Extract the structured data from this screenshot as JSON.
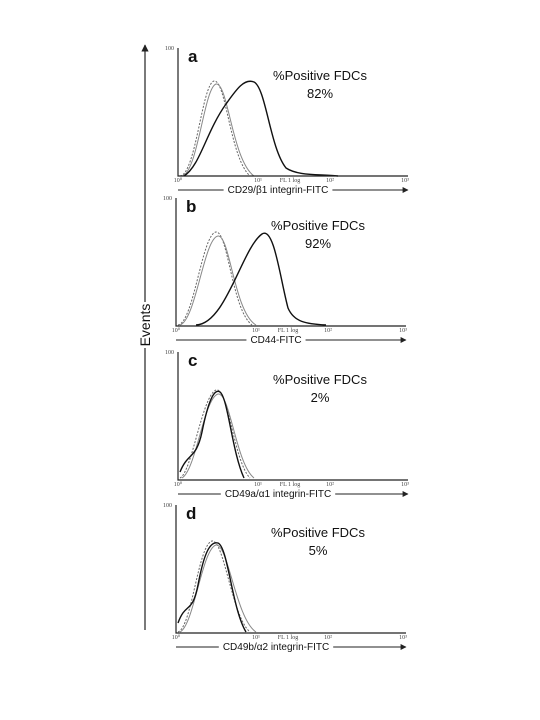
{
  "figure": {
    "y_label": "Events",
    "panels": [
      {
        "letter": "a",
        "stat_label": "%Positive FDCs",
        "stat_value": "82%",
        "x_label": "CD29/β1 integrin-FITC",
        "y_top": "100",
        "x_ticks": [
          "10⁰",
          "10¹",
          "FL 1 log",
          "10²",
          "10³"
        ]
      },
      {
        "letter": "b",
        "stat_label": "%Positive FDCs",
        "stat_value": "92%",
        "x_label": "CD44-FITC",
        "y_top": "100",
        "x_ticks": [
          "10⁰",
          "10¹",
          "FL 1 log",
          "10²",
          "10³"
        ]
      },
      {
        "letter": "c",
        "stat_label": "%Positive FDCs",
        "stat_value": "2%",
        "x_label": "CD49a/α1 integrin-FITC",
        "y_top": "100",
        "x_ticks": [
          "10⁰",
          "10¹",
          "FL 1 log",
          "10²",
          "10³"
        ]
      },
      {
        "letter": "d",
        "stat_label": "%Positive FDCs",
        "stat_value": "5%",
        "x_label": "CD49b/α2 integrin-FITC",
        "y_top": "100",
        "x_ticks": [
          "10⁰",
          "10¹",
          "FL 1 log",
          "10²",
          "10³"
        ]
      }
    ]
  }
}
